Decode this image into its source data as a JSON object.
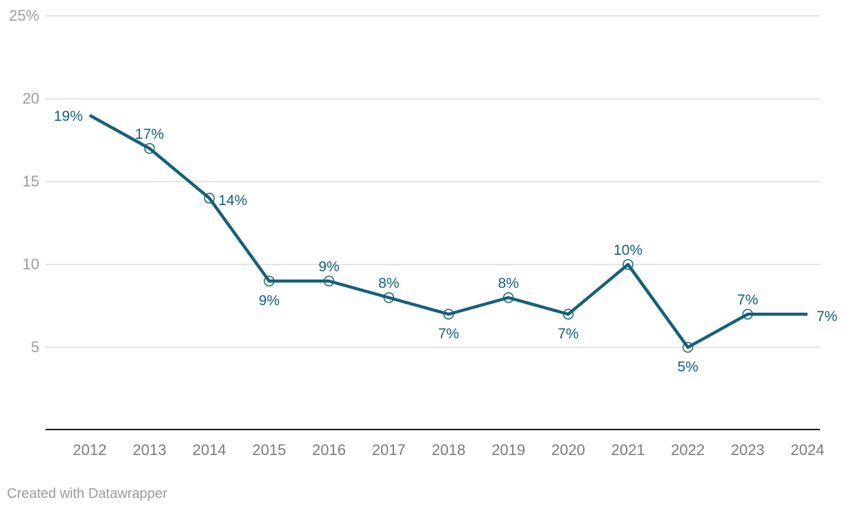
{
  "chart_data": {
    "type": "line",
    "title": "",
    "xlabel": "",
    "ylabel": "",
    "x": [
      "2012",
      "2013",
      "2014",
      "2015",
      "2016",
      "2017",
      "2018",
      "2019",
      "2020",
      "2021",
      "2022",
      "2023",
      "2024"
    ],
    "values": [
      19,
      17,
      14,
      9,
      9,
      8,
      7,
      8,
      7,
      10,
      5,
      7,
      7
    ],
    "point_labels": [
      "19%",
      "17%",
      "14%",
      "9%",
      "9%",
      "8%",
      "7%",
      "8%",
      "7%",
      "10%",
      "5%",
      "7%",
      "7%"
    ],
    "label_placement": [
      "left",
      "above",
      "right",
      "below",
      "above",
      "above",
      "below",
      "above",
      "below",
      "above",
      "below",
      "above",
      "right"
    ],
    "y_ticks": [
      {
        "value": 25,
        "label": "25%"
      },
      {
        "value": 20,
        "label": "20"
      },
      {
        "value": 15,
        "label": "15"
      },
      {
        "value": 10,
        "label": "10"
      },
      {
        "value": 5,
        "label": "5"
      }
    ],
    "ylim": [
      0,
      25
    ],
    "grid": "horizontal",
    "legend": "none",
    "colors": {
      "line": "#15607a",
      "point_label": "#15607a",
      "marker_fill": "#ffffff",
      "grid": "#e4e4e4",
      "axis": "#1a1a1a",
      "y_tick_text": "#9d9d9d",
      "x_tick_text": "#7b7b7b",
      "background": "#ffffff"
    }
  },
  "footer": {
    "attribution": "Created with Datawrapper"
  }
}
